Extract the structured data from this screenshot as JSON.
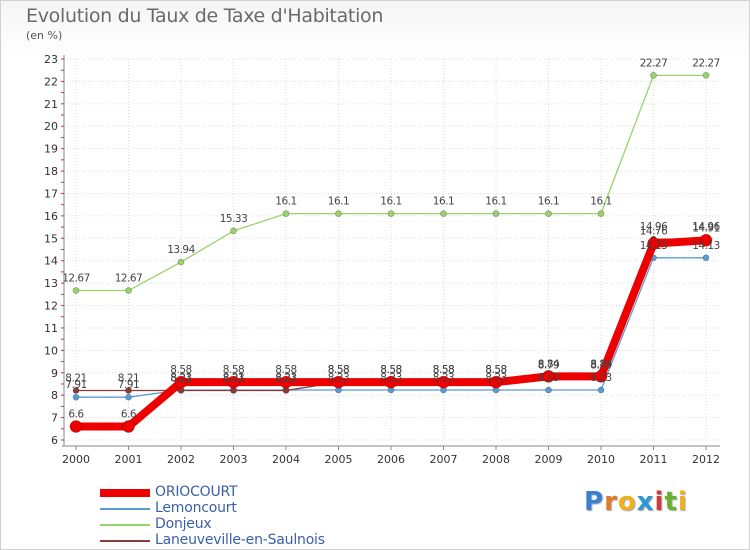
{
  "title": "Evolution du Taux de Taxe d'Habitation",
  "unit": "(en %)",
  "logo": {
    "text": "Proxiti",
    "letters": [
      "P",
      "r",
      "o",
      "x",
      "i",
      "t",
      "i"
    ],
    "colors": [
      "#3a7fd0",
      "#e07a2a",
      "#f0b020",
      "#2a9ad0",
      "#d03a3a",
      "#6ab030",
      "#f0b020"
    ]
  },
  "chart_data": {
    "type": "line",
    "title": "Evolution du Taux de Taxe d'Habitation",
    "ylabel": "(en %)",
    "xlabel": "",
    "x": [
      "2000",
      "2001",
      "2002",
      "2003",
      "2004",
      "2005",
      "2006",
      "2007",
      "2008",
      "2009",
      "2010",
      "2011",
      "2012"
    ],
    "ylim": [
      6,
      23
    ],
    "yticks": [
      6,
      7,
      8,
      9,
      10,
      11,
      12,
      13,
      14,
      15,
      16,
      17,
      18,
      19,
      20,
      21,
      22,
      23
    ],
    "grid": true,
    "legend": "bottom-left",
    "series": [
      {
        "name": "ORIOCOURT",
        "color": "#ee0000",
        "values": [
          6.6,
          6.6,
          8.58,
          8.58,
          8.58,
          8.58,
          8.58,
          8.58,
          8.58,
          8.84,
          8.84,
          14.76,
          14.91
        ],
        "labels": [
          "6.6",
          "6.6",
          "8.58",
          "8.58",
          "8.58",
          "8.58",
          "8.58",
          "8.58",
          "8.58",
          "8.84",
          "8.84",
          "14.76",
          "14.91"
        ]
      },
      {
        "name": "Lemoncourt",
        "color": "#5b9bd5",
        "values": [
          7.91,
          7.91,
          8.23,
          8.23,
          8.23,
          8.23,
          8.23,
          8.23,
          8.23,
          8.23,
          8.23,
          14.13,
          14.13
        ],
        "labels": [
          "7.91",
          "7.91",
          "8.23",
          "8.23",
          "8.23",
          "8.23",
          "8.23",
          "8.23",
          "8.23",
          "8.23",
          "8.23",
          "14.13",
          "14.13"
        ]
      },
      {
        "name": "Donjeux",
        "color": "#99d36b",
        "values": [
          12.67,
          12.67,
          13.94,
          15.33,
          16.1,
          16.1,
          16.1,
          16.1,
          16.1,
          16.1,
          16.1,
          22.27,
          22.27
        ],
        "labels": [
          "12.67",
          "12.67",
          "13.94",
          "15.33",
          "16.1",
          "16.1",
          "16.1",
          "16.1",
          "16.1",
          "16.1",
          "16.1",
          "22.27",
          "22.27"
        ]
      },
      {
        "name": "Laneuveville-en-Saulnois",
        "color": "#8b3a3a",
        "values": [
          8.21,
          8.21,
          8.21,
          8.21,
          8.21,
          8.58,
          8.58,
          8.58,
          8.58,
          8.79,
          8.79,
          14.96,
          14.96
        ],
        "labels": [
          "8.21",
          "8.21",
          "8.21",
          "8.21",
          "8.21",
          "8.58",
          "8.58",
          "8.58",
          "8.58",
          "8.79",
          "8.79",
          "14.96",
          "14.96"
        ]
      }
    ]
  }
}
